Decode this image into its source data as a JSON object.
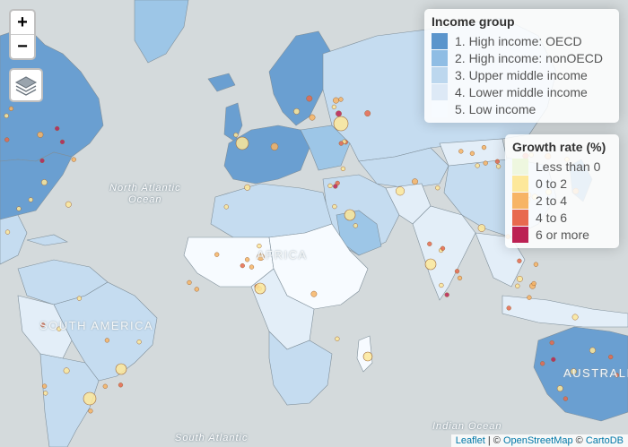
{
  "colors": {
    "ocean": "#d4dadc",
    "oecd": "#6a9fd1",
    "nonoecd": "#9dc6e7",
    "upper_middle": "#c5dcf0",
    "lower_middle": "#e3eef8",
    "low": "#f7fbff",
    "border": "#7f8f9a"
  },
  "zoom": {
    "in_label": "+",
    "out_label": "−"
  },
  "labels": {
    "north_atlantic": [
      "North Atlantic",
      "Ocean"
    ],
    "africa": "AFRICA",
    "south_america": "SOUTH AMERICA",
    "australia": "AUSTRALIA",
    "indian_ocean": "Indian Ocean",
    "south_atlantic": "South Atlantic"
  },
  "legend_income": {
    "title": "Income group",
    "items": [
      {
        "label": "1. High income: OECD",
        "color": "#5b95cc"
      },
      {
        "label": "2. High income: nonOECD",
        "color": "#8fbde4"
      },
      {
        "label": "3. Upper middle income",
        "color": "#bcd7ee"
      },
      {
        "label": "4. Lower middle income",
        "color": "#dde9f6"
      },
      {
        "label": "5. Low income",
        "color": "#f7fbff"
      }
    ]
  },
  "legend_growth": {
    "title": "Growth rate (%)",
    "items": [
      {
        "label": "Less than 0",
        "color": "#eef7df"
      },
      {
        "label": "0 to 2",
        "color": "#fde89a"
      },
      {
        "label": "2 to 4",
        "color": "#f7b465"
      },
      {
        "label": "4 to 6",
        "color": "#e8694e"
      },
      {
        "label": "6 or more",
        "color": "#bc2153"
      }
    ]
  },
  "attribution": {
    "leaflet": "Leaflet",
    "sep1": " | © ",
    "osm": "OpenStreetMap",
    "sep2": " © ",
    "carto": "CartoDB"
  },
  "cities": [
    [
      0,
      0,
      4,
      1
    ],
    [
      0,
      2,
      5,
      1
    ],
    [
      0,
      7,
      4,
      2
    ],
    [
      1,
      4,
      7,
      1
    ],
    [
      1,
      7,
      5,
      2
    ],
    [
      2,
      3,
      4,
      1
    ],
    [
      3,
      2,
      3,
      1
    ],
    [
      3,
      9,
      4,
      2
    ],
    [
      5,
      4,
      4,
      1
    ],
    [
      6,
      7,
      4,
      2
    ],
    [
      7,
      2,
      3,
      1
    ],
    [
      2,
      6,
      4,
      1
    ],
    [
      4,
      4,
      6,
      1
    ],
    [
      5,
      9,
      3,
      2
    ],
    [
      6,
      4,
      3,
      1
    ],
    [
      8,
      7,
      5,
      2
    ],
    [
      9,
      3,
      3,
      1
    ],
    [
      1,
      1,
      4,
      1
    ],
    [
      2,
      9,
      3,
      2
    ],
    [
      4,
      0,
      3,
      1
    ],
    [
      7,
      9,
      4,
      1
    ],
    [
      8,
      1,
      3,
      2
    ],
    [
      20,
      0,
      3,
      1
    ],
    [
      20,
      1,
      3,
      1
    ],
    [
      20,
      2,
      3,
      2
    ],
    [
      21,
      3,
      3,
      1
    ],
    [
      22,
      0,
      3,
      1
    ],
    [
      21,
      5,
      4,
      2
    ],
    [
      25,
      1,
      3,
      1
    ],
    [
      26,
      2,
      3,
      2
    ],
    [
      27,
      3,
      3,
      1
    ],
    [
      25,
      4,
      4,
      1
    ],
    [
      28,
      0,
      3,
      1
    ],
    [
      30,
      5,
      3,
      1
    ],
    [
      31,
      6,
      3,
      2
    ],
    [
      32,
      7,
      3,
      1
    ],
    [
      33,
      8,
      4,
      1
    ],
    [
      34,
      9,
      3,
      2
    ],
    [
      35,
      0,
      3,
      1
    ],
    [
      36,
      1,
      3,
      1
    ],
    [
      37,
      2,
      3,
      2
    ],
    [
      38,
      3,
      4,
      1
    ],
    [
      39,
      4,
      3,
      1
    ],
    [
      40,
      5,
      3,
      2
    ],
    [
      41,
      6,
      3,
      1
    ],
    [
      42,
      7,
      4,
      1
    ],
    [
      43,
      8,
      3,
      2
    ],
    [
      44,
      9,
      3,
      1
    ],
    [
      45,
      0,
      3,
      1
    ],
    [
      46,
      1,
      3,
      2
    ],
    [
      47,
      2,
      4,
      1
    ],
    [
      48,
      3,
      3,
      3
    ],
    [
      49,
      4,
      3,
      1
    ],
    [
      50,
      5,
      3,
      3
    ],
    [
      51,
      6,
      3,
      2
    ],
    [
      52,
      7,
      4,
      1
    ],
    [
      53,
      8,
      3,
      3
    ],
    [
      54,
      9,
      3,
      2
    ],
    [
      55,
      0,
      3,
      1
    ],
    [
      56,
      1,
      3,
      3
    ],
    [
      57,
      2,
      4,
      2
    ],
    [
      58,
      3,
      3,
      1
    ],
    [
      59,
      4,
      3,
      3
    ],
    [
      60,
      5,
      3,
      2
    ],
    [
      61,
      6,
      3,
      1
    ],
    [
      62,
      7,
      4,
      3
    ],
    [
      63,
      8,
      3,
      2
    ],
    [
      64,
      9,
      3,
      1
    ],
    [
      65,
      0,
      3,
      3
    ],
    [
      66,
      1,
      3,
      2
    ],
    [
      67,
      2,
      4,
      1
    ],
    [
      68,
      3,
      3,
      3
    ],
    [
      69,
      4,
      3,
      4
    ],
    [
      70,
      5,
      3,
      3
    ],
    [
      71,
      6,
      3,
      2
    ],
    [
      72,
      7,
      4,
      3
    ],
    [
      73,
      8,
      3,
      4
    ],
    [
      74,
      9,
      3,
      3
    ],
    [
      75,
      0,
      3,
      2
    ],
    [
      76,
      1,
      3,
      3
    ],
    [
      77,
      2,
      4,
      4
    ],
    [
      78,
      3,
      3,
      3
    ],
    [
      79,
      4,
      3,
      2
    ],
    [
      80,
      5,
      3,
      3
    ],
    [
      81,
      6,
      3,
      4
    ],
    [
      82,
      7,
      4,
      3
    ],
    [
      83,
      8,
      3,
      2
    ],
    [
      84,
      9,
      3,
      3
    ],
    [
      85,
      0,
      3,
      4
    ],
    [
      86,
      1,
      3,
      3
    ],
    [
      87,
      2,
      4,
      2
    ],
    [
      88,
      3,
      3,
      3
    ],
    [
      89,
      4,
      3,
      4
    ],
    [
      90,
      5,
      3,
      2
    ],
    [
      91,
      6,
      3,
      3
    ],
    [
      92,
      7,
      4,
      2
    ],
    [
      93,
      8,
      3,
      3
    ],
    [
      94,
      9,
      3,
      4
    ],
    [
      95,
      0,
      3,
      2
    ],
    [
      96,
      1,
      3,
      3
    ],
    [
      97,
      2,
      4,
      2
    ],
    [
      98,
      3,
      3,
      3
    ],
    [
      99,
      4,
      3,
      1
    ]
  ]
}
